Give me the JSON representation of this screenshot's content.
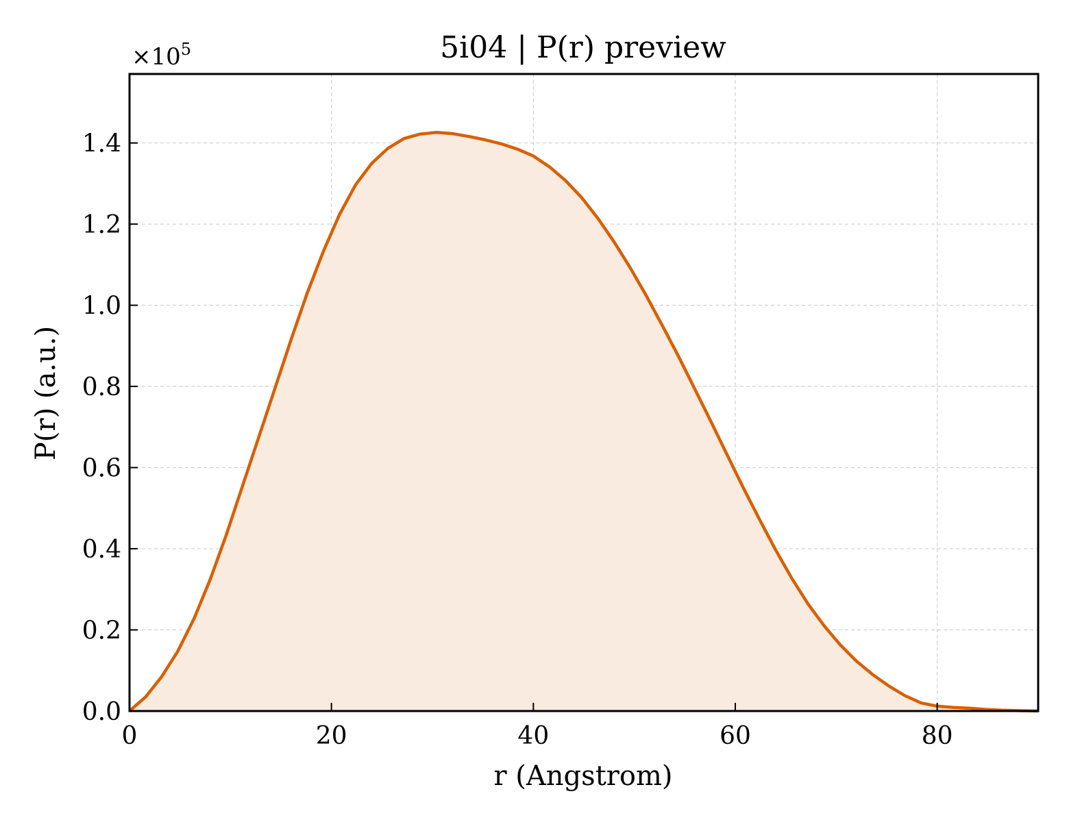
{
  "chart_data": {
    "type": "area",
    "title": "5i04 | P(r) preview",
    "xlabel": "r (Angstrom)",
    "ylabel": "P(r) (a.u.)",
    "y_scale_label": "×10",
    "y_scale_exponent": "5",
    "xlim": [
      0,
      90
    ],
    "ylim": [
      0,
      1.57
    ],
    "y_multiplier": 100000,
    "x_ticks": [
      0,
      20,
      40,
      60,
      80
    ],
    "x_tick_labels": [
      "0",
      "20",
      "40",
      "60",
      "80"
    ],
    "y_ticks": [
      0,
      0.2,
      0.4,
      0.6,
      0.8,
      1.0,
      1.2,
      1.4
    ],
    "y_tick_labels": [
      "0.0",
      "0.2",
      "0.4",
      "0.6",
      "0.8",
      "1.0",
      "1.2",
      "1.4"
    ],
    "grid": true,
    "line_color": "#d95f02",
    "fill_color": "#f9ebe0",
    "series": [
      {
        "x": [
          0,
          1.6,
          3.2,
          4.8,
          6.4,
          8.0,
          9.6,
          11.2,
          12.8,
          14.4,
          16.0,
          17.6,
          19.2,
          20.8,
          22.4,
          24.0,
          25.6,
          27.2,
          28.8,
          30.4,
          32.0,
          33.6,
          35.2,
          36.8,
          38.4,
          40.0,
          41.6,
          43.2,
          44.8,
          46.4,
          48.0,
          49.6,
          51.2,
          52.8,
          54.4,
          56.0,
          57.6,
          59.2,
          60.8,
          62.4,
          64.0,
          65.6,
          67.2,
          68.8,
          70.4,
          72.0,
          73.6,
          75.2,
          76.8,
          78.4,
          80.0,
          81.6,
          83.2,
          84.8,
          86.4,
          88.0,
          90.0
        ],
        "y": [
          0.0,
          0.035,
          0.085,
          0.148,
          0.228,
          0.325,
          0.435,
          0.555,
          0.675,
          0.795,
          0.915,
          1.03,
          1.133,
          1.224,
          1.297,
          1.35,
          1.387,
          1.411,
          1.422,
          1.426,
          1.423,
          1.416,
          1.408,
          1.398,
          1.385,
          1.368,
          1.341,
          1.307,
          1.265,
          1.214,
          1.156,
          1.092,
          1.023,
          0.949,
          0.873,
          0.793,
          0.713,
          0.631,
          0.55,
          0.472,
          0.397,
          0.327,
          0.264,
          0.21,
          0.163,
          0.123,
          0.09,
          0.062,
          0.038,
          0.02,
          0.012,
          0.009,
          0.007,
          0.004,
          0.002,
          0.001,
          0.0
        ]
      }
    ]
  }
}
